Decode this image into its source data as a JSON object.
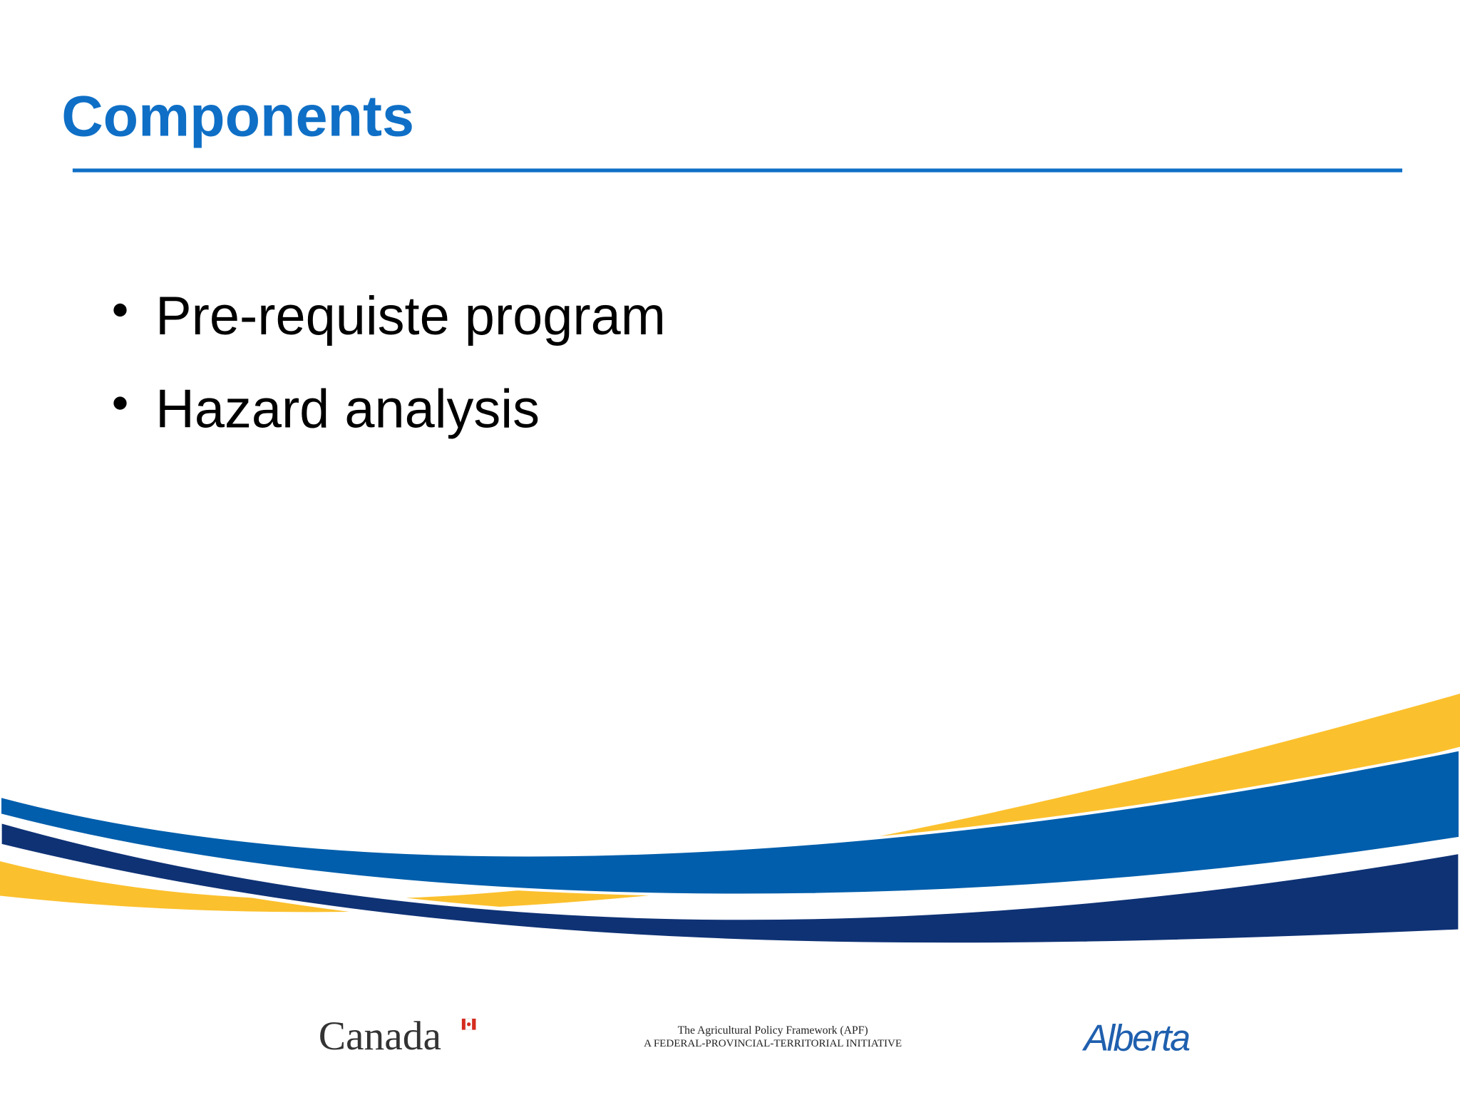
{
  "header": {
    "title": "Components"
  },
  "bullets": [
    "Pre-requiste program",
    "Hazard analysis"
  ],
  "footer": {
    "canada": "Canada",
    "apf_line1": "The Agricultural Policy Framework (APF)",
    "apf_line2": "A FEDERAL-PROVINCIAL-TERRITORIAL INITIATIVE",
    "alberta": "Alberta"
  }
}
